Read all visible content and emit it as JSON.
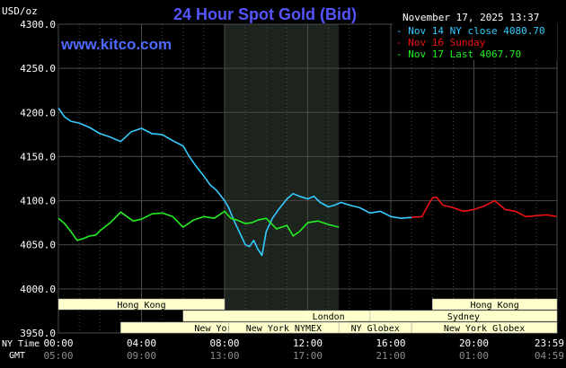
{
  "header": {
    "unit": "USD/oz",
    "title": "24 Hour Spot Gold (Bid)",
    "timestamp": "November 17, 2025 13:37",
    "site": "www.kitco.com"
  },
  "colors": {
    "background": "#000000",
    "plot_bg": "#000000",
    "session_shade": "#1d231d",
    "grid": "#4a4a4a",
    "axis_text": "#ffffff",
    "title": "#5555ff",
    "site": "#4f6bff",
    "band_bg": "#ffffcc",
    "band_text": "#000000",
    "nov14": "#33ccff",
    "nov16": "#ee1111",
    "nov17": "#22ee22"
  },
  "legend": [
    {
      "label": "Nov 14 NY close 4080.70",
      "color": "#33ccff"
    },
    {
      "label": "Nov 16 Sunday",
      "color": "#ee1111"
    },
    {
      "label": "Nov 17 Last 4067.70",
      "color": "#22ee22"
    }
  ],
  "sessions_left": [
    {
      "label": "Hong Kong",
      "start": 0,
      "end": 8
    },
    {
      "label": "London",
      "start": 6,
      "end": 20
    },
    {
      "label": "New York Globex",
      "start": 3,
      "end": 14
    },
    {
      "label": "New York NYMEX",
      "start": 8.2,
      "end": 13.5
    },
    {
      "label": "NY Globex",
      "start": 13.5,
      "end": 17
    }
  ],
  "sessions_right": [
    {
      "label": "Hong Kong",
      "start": 18,
      "end": 24
    },
    {
      "label": "Sydney",
      "start": 15,
      "end": 24
    },
    {
      "label": "New York Globex",
      "start": 17,
      "end": 24
    }
  ],
  "bottom_axis": {
    "ny_time_label": "NY Time",
    "gmt_label": "GMT",
    "ny_ticks": [
      "00:00",
      "04:00",
      "08:00",
      "12:00",
      "16:00",
      "20:00",
      "23:59"
    ],
    "gmt_ticks": [
      "05:00",
      "09:00",
      "13:00",
      "17:00",
      "21:00",
      "01:00",
      "04:59"
    ]
  },
  "chart_data": {
    "type": "line",
    "title": "24 Hour Spot Gold (Bid)",
    "ylabel": "USD/oz",
    "xlabel": "NY Time",
    "xlim": [
      0,
      24
    ],
    "ylim": [
      3950,
      4300
    ],
    "yticks": [
      3950,
      4000,
      4050,
      4100,
      4150,
      4200,
      4250,
      4300
    ],
    "ytick_labels": [
      "3950.0",
      "4000.0",
      "4050.0",
      "4100.0",
      "4150.0",
      "4200.0",
      "4250.0",
      "4300.0"
    ],
    "highlight_range_hours": [
      8,
      13.5
    ],
    "grid": true,
    "series": [
      {
        "name": "Nov 14 NY close 4080.70",
        "color": "#33ccff",
        "x": [
          0,
          0.3,
          0.6,
          1,
          1.5,
          2,
          2.5,
          3,
          3.5,
          4,
          4.5,
          5,
          5.5,
          6,
          6.3,
          6.6,
          7,
          7.3,
          7.6,
          8,
          8.2,
          8.4,
          8.6,
          8.8,
          9,
          9.2,
          9.4,
          9.6,
          9.8,
          10,
          10.3,
          10.6,
          11,
          11.3,
          11.6,
          12,
          12.3,
          12.6,
          13,
          13.3,
          13.6,
          14,
          14.5,
          15,
          15.5,
          16,
          16.5,
          17
        ],
        "y": [
          4205,
          4195,
          4190,
          4188,
          4183,
          4176,
          4172,
          4167,
          4178,
          4182,
          4176,
          4175,
          4168,
          4162,
          4150,
          4140,
          4128,
          4118,
          4112,
          4100,
          4092,
          4080,
          4070,
          4060,
          4050,
          4048,
          4055,
          4045,
          4038,
          4065,
          4080,
          4090,
          4102,
          4108,
          4105,
          4102,
          4105,
          4098,
          4093,
          4095,
          4098,
          4095,
          4092,
          4086,
          4088,
          4082,
          4080,
          4081
        ]
      },
      {
        "name": "Nov 16 Sunday",
        "color": "#ee1111",
        "x": [
          17,
          17.5,
          17.8,
          18,
          18.2,
          18.5,
          19,
          19.5,
          20,
          20.5,
          21,
          21.5,
          22,
          22.5,
          23,
          23.5,
          23.98
        ],
        "y": [
          4081,
          4082,
          4095,
          4103,
          4104,
          4095,
          4092,
          4088,
          4090,
          4094,
          4100,
          4090,
          4088,
          4082,
          4083,
          4084,
          4082
        ]
      },
      {
        "name": "Nov 17 Last 4067.70",
        "color": "#22ee22",
        "x": [
          0,
          0.3,
          0.6,
          0.9,
          1.2,
          1.5,
          1.8,
          2,
          2.5,
          3,
          3.3,
          3.6,
          4,
          4.5,
          5,
          5.5,
          6,
          6.5,
          7,
          7.5,
          8,
          8.3,
          8.6,
          9,
          9.3,
          9.6,
          10,
          10.5,
          11,
          11.3,
          11.6,
          12,
          12.5,
          13,
          13.5
        ],
        "y": [
          4080,
          4074,
          4065,
          4055,
          4057,
          4060,
          4061,
          4066,
          4075,
          4087,
          4082,
          4077,
          4079,
          4085,
          4086,
          4082,
          4070,
          4078,
          4082,
          4080,
          4088,
          4080,
          4078,
          4074,
          4075,
          4078,
          4080,
          4068,
          4072,
          4060,
          4065,
          4075,
          4077,
          4073,
          4070
        ]
      }
    ]
  }
}
